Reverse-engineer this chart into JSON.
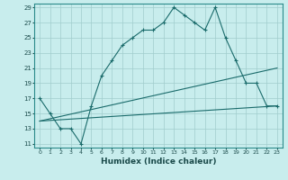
{
  "xlabel": "Humidex (Indice chaleur)",
  "bg_color": "#c8eded",
  "grid_color": "#a0cccc",
  "line_color": "#1a6b6b",
  "xlim": [
    -0.5,
    23.5
  ],
  "ylim": [
    10.5,
    29.5
  ],
  "yticks": [
    11,
    13,
    15,
    17,
    19,
    21,
    23,
    25,
    27,
    29
  ],
  "xticks": [
    0,
    1,
    2,
    3,
    4,
    5,
    6,
    7,
    8,
    9,
    10,
    11,
    12,
    13,
    14,
    15,
    16,
    17,
    18,
    19,
    20,
    21,
    22,
    23
  ],
  "line1_x": [
    0,
    1,
    2,
    3,
    4,
    5,
    6,
    7,
    8,
    9,
    10,
    11,
    12,
    13,
    14,
    15,
    16,
    17,
    18,
    19,
    20,
    21,
    22,
    23
  ],
  "line1_y": [
    17,
    15,
    13,
    13,
    11,
    16,
    20,
    22,
    24,
    25,
    26,
    26,
    27,
    29,
    28,
    27,
    26,
    29,
    25,
    22,
    19,
    19,
    16,
    16
  ],
  "line2_x": [
    0,
    23
  ],
  "line2_y": [
    14,
    21
  ],
  "line3_x": [
    0,
    23
  ],
  "line3_y": [
    14,
    16
  ]
}
